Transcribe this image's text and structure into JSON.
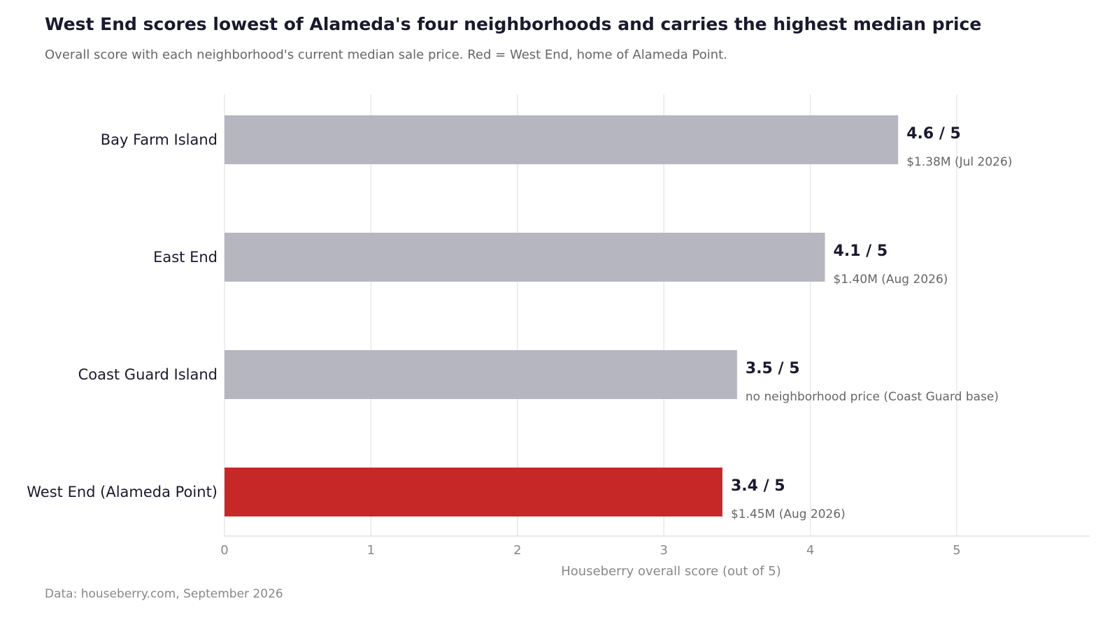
{
  "title": "West End scores lowest of Alameda's four neighborhoods and carries the highest median price",
  "subtitle": "Overall score with each neighborhood's current median sale price. Red = West End, home of Alameda Point.",
  "source": "Data: houseberry.com, September 2026",
  "colors": {
    "default_bar": "#b6b6c1",
    "highlight_bar": "#c62828",
    "grid": "#e8e8e8",
    "text_dark": "#1a1a2e",
    "text_muted": "#666666"
  },
  "chart_data": {
    "type": "bar",
    "orientation": "horizontal",
    "categories": [
      "Bay Farm Island",
      "East End",
      "Coast Guard Island",
      "West End (Alameda Point)"
    ],
    "values": [
      4.6,
      4.1,
      3.5,
      3.4
    ],
    "value_labels": [
      "4.6 / 5",
      "4.1 / 5",
      "3.5 / 5",
      "3.4 / 5"
    ],
    "price_labels": [
      "$1.38M (Jul 2026)",
      "$1.40M (Aug 2026)",
      "no neighborhood price (Coast Guard base)",
      "$1.45M (Aug 2026)"
    ],
    "highlight": [
      false,
      false,
      false,
      true
    ],
    "xlabel": "Houseberry overall score (out of 5)",
    "ylabel": "",
    "xlim": [
      0,
      5.9
    ],
    "xticks": [
      0,
      1,
      2,
      3,
      4,
      5
    ],
    "grid": true
  }
}
